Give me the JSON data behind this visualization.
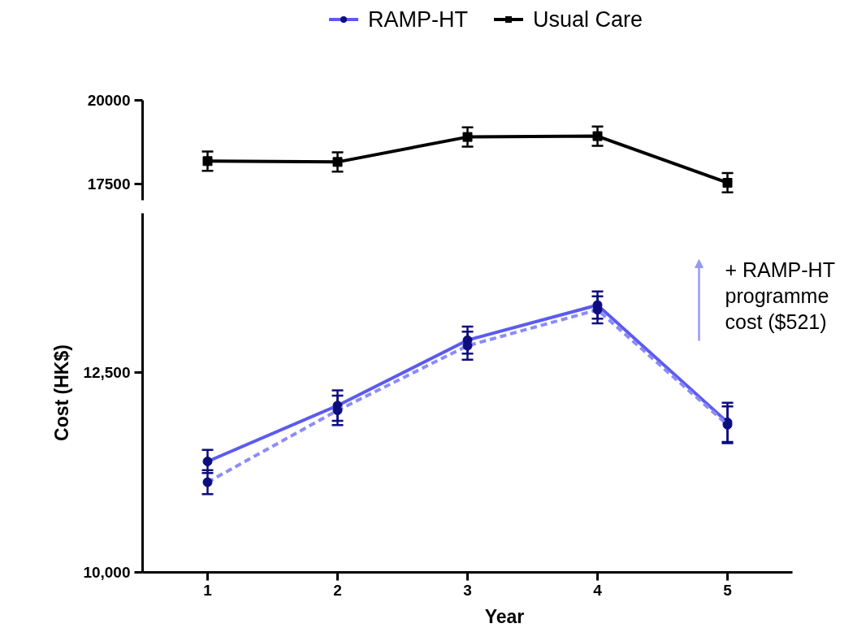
{
  "chart_data": [
    {
      "type": "line",
      "x": [
        1,
        2,
        3,
        4,
        5
      ],
      "ylim": [
        17000,
        20000
      ],
      "yticks": [
        17500,
        20000
      ],
      "tick_labels": "y",
      "legend": "top",
      "grid": false,
      "series": [
        {
          "name": "Usual Care",
          "color": "#000000",
          "marker": "square",
          "line_style": "solid",
          "values": [
            18175,
            18150,
            18900,
            18925,
            17525
          ],
          "errors": [
            290,
            290,
            290,
            290,
            290
          ]
        }
      ]
    },
    {
      "type": "line",
      "x": [
        1,
        2,
        3,
        4,
        5
      ],
      "xlim": [
        0.5,
        5.5
      ],
      "xticks": [
        1,
        2,
        3,
        4,
        5
      ],
      "ylim": [
        10000,
        14500
      ],
      "yticks": [
        {
          "value": 10000,
          "label": "10,000"
        },
        {
          "value": 12500,
          "label": "12,500"
        }
      ],
      "xlabel": "Year",
      "ylabel": "Cost (HK$)",
      "grid": false,
      "annotations": [
        "+ RAMP-HT\nprogramme\ncost ($521)"
      ],
      "series": [
        {
          "name": "RAMP-HT",
          "color": "#5b5bf0",
          "marker": "circle",
          "line_style": "solid",
          "values": [
            11390,
            12090,
            12910,
            13350,
            11880
          ],
          "errors": [
            145,
            190,
            170,
            170,
            245
          ]
        },
        {
          "color": "#8c8cf7",
          "marker": "circle",
          "line_style": "dashed",
          "values": [
            11130,
            12030,
            12840,
            13290,
            11850
          ],
          "errors": [
            150,
            185,
            175,
            170,
            230
          ]
        }
      ]
    }
  ]
}
